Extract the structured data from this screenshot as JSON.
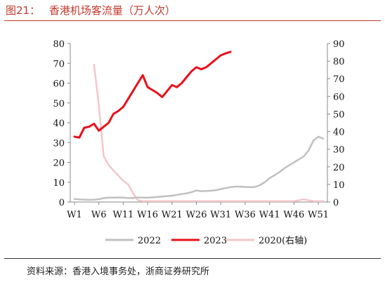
{
  "figure_label": "图21：",
  "figure_title": "香港机场客流量（万人次）",
  "source_text": "资料来源：香港入境事务处，浙商证券研究所",
  "colors": {
    "title": "#c0392b",
    "s2022": "#c0c0c0",
    "s2023": "#e8101a",
    "s2020": "#f3c6cb"
  },
  "chart_data": {
    "type": "line",
    "x": [
      "W1",
      "W2",
      "W3",
      "W4",
      "W5",
      "W6",
      "W7",
      "W8",
      "W9",
      "W10",
      "W11",
      "W12",
      "W13",
      "W14",
      "W15",
      "W16",
      "W17",
      "W18",
      "W19",
      "W20",
      "W21",
      "W22",
      "W23",
      "W24",
      "W25",
      "W26",
      "W27",
      "W28",
      "W29",
      "W30",
      "W31",
      "W32",
      "W33",
      "W34",
      "W35",
      "W36",
      "W37",
      "W38",
      "W39",
      "W40",
      "W41",
      "W42",
      "W43",
      "W44",
      "W45",
      "W46",
      "W47",
      "W48",
      "W49",
      "W50",
      "W51",
      "W52"
    ],
    "x_tick_labels": [
      "W1",
      "W6",
      "W11",
      "W16",
      "W21",
      "W26",
      "W31",
      "W36",
      "W41",
      "W46",
      "W51"
    ],
    "y_left": {
      "ylim": [
        0,
        80
      ],
      "ticks": [
        "0",
        "10",
        "20",
        "30",
        "40",
        "50",
        "60",
        "70",
        "80"
      ]
    },
    "y_right": {
      "ylim": [
        0,
        90
      ],
      "ticks": [
        "0",
        "10",
        "20",
        "30",
        "40",
        "50",
        "60",
        "70",
        "80",
        "90"
      ]
    },
    "legend_position": "bottom",
    "series": [
      {
        "name": "2022",
        "axis": "left",
        "color": "#c0c0c0",
        "values": [
          1.5,
          1.3,
          1.2,
          1.1,
          1.2,
          1.4,
          2.0,
          2.2,
          2.2,
          2.3,
          2.2,
          2.0,
          2.0,
          2.3,
          2.2,
          2.2,
          2.4,
          2.6,
          2.8,
          3.0,
          3.2,
          3.6,
          4.0,
          4.4,
          5.0,
          5.8,
          5.5,
          5.6,
          5.7,
          6.0,
          6.5,
          7.0,
          7.5,
          7.8,
          7.8,
          7.6,
          7.5,
          7.6,
          8.5,
          10.0,
          12.0,
          13.5,
          15.0,
          17.0,
          18.5,
          20.0,
          21.5,
          23.0,
          26.0,
          31.0,
          33.0,
          32.0
        ]
      },
      {
        "name": "2023",
        "axis": "left",
        "color": "#e8101a",
        "values": [
          33,
          32.5,
          37.5,
          38,
          39.5,
          36,
          38,
          40,
          44.5,
          46,
          48,
          52,
          56,
          60,
          64,
          58,
          56.5,
          55,
          53,
          56,
          59,
          58,
          60,
          63,
          66,
          68,
          67,
          68,
          70,
          72,
          74,
          75,
          75.8,
          null,
          null,
          null,
          null,
          null,
          null,
          null,
          null,
          null,
          null,
          null,
          null,
          null,
          null,
          null,
          null,
          null,
          null,
          null
        ]
      },
      {
        "name": "2020(右轴)",
        "axis": "right",
        "color": "#f3c6cb",
        "values": [
          null,
          null,
          null,
          null,
          78,
          55,
          26,
          21,
          18,
          15,
          12,
          10,
          5,
          1,
          0.5,
          0.5,
          0.5,
          0.5,
          0.5,
          0.5,
          0.5,
          0.5,
          0.5,
          0.5,
          0.5,
          0.5,
          0.5,
          0.5,
          0.5,
          0.5,
          0.5,
          0.5,
          0.5,
          0.5,
          0.5,
          0.5,
          0.5,
          0.5,
          0.5,
          0.5,
          0.5,
          0.5,
          0.5,
          0.5,
          0.5,
          0.5,
          1,
          1.5,
          1,
          0.5,
          0.5,
          0.5
        ]
      }
    ]
  }
}
